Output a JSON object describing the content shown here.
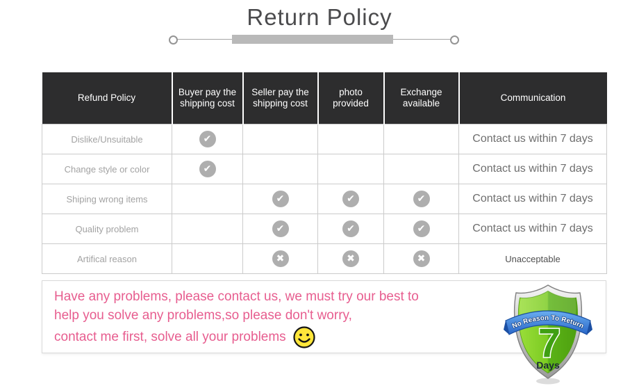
{
  "title": "Return Policy",
  "table": {
    "headers": [
      "Refund Policy",
      "Buyer pay the shipping cost",
      "Seller pay the shipping cost",
      "photo provided",
      "Exchange available",
      "Communication"
    ],
    "rows": [
      {
        "label": "Dislike/Unsuitable",
        "marks": [
          "check",
          "",
          "",
          ""
        ],
        "communication": "Contact us within 7 days"
      },
      {
        "label": "Change style or color",
        "marks": [
          "check",
          "",
          "",
          ""
        ],
        "communication": "Contact us within 7 days"
      },
      {
        "label": "Shiping wrong items",
        "marks": [
          "",
          "check",
          "check",
          "check"
        ],
        "communication": "Contact us within 7 days"
      },
      {
        "label": "Quality problem",
        "marks": [
          "",
          "check",
          "check",
          "check"
        ],
        "communication": "Contact us within 7 days"
      },
      {
        "label": "Artifical reason",
        "marks": [
          "",
          "cross",
          "cross",
          "cross"
        ],
        "communication": "Unacceptable"
      }
    ]
  },
  "note": {
    "lines": [
      "Have any problems, please contact us, we must try our best to",
      "help you solve any problems,so please don't worry,",
      "contact me first, solve all your problems"
    ]
  },
  "badge": {
    "ribbon_text": "No Reason To Return",
    "number": "7",
    "unit": "Days"
  },
  "icons": {
    "check": "check-icon",
    "cross": "cross-icon",
    "smiley": "smiley-face-icon"
  },
  "colors": {
    "header_bg": "#2d2d2e",
    "table_border": "#cbcbcb",
    "mark_gray": "#aeaeae",
    "note_pink": "#e75d8f",
    "title_gray": "#4b4b4d",
    "shield_green_light": "#8fd92f",
    "shield_green_dark": "#4ea00f",
    "ribbon_blue": "#2a66c8",
    "smiley_yellow": "#ffe63a"
  }
}
